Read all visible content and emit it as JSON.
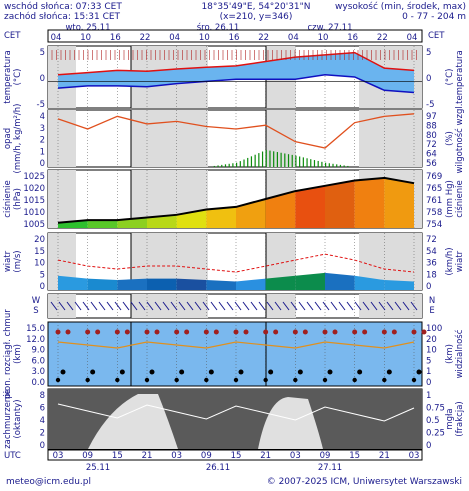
{
  "header": {
    "sunrise": "wschód słońca: 07:33 CET",
    "sunset": "zachód słońca: 15:31 CET",
    "coords": "18°35'49\"E, 54°20'31\"N",
    "grid": "(x=210, y=346)",
    "altitude_label": "wysokość (min, środek, max)",
    "altitude_values": "0 - 77 - 204 m"
  },
  "timeline": {
    "tz_left": "CET",
    "tz_right": "CET",
    "tz_bottom": "UTC",
    "cet_hours": [
      "04",
      "10",
      "16",
      "22",
      "04",
      "10",
      "16",
      "22",
      "04",
      "10",
      "16",
      "22",
      "04"
    ],
    "utc_hours": [
      "03",
      "09",
      "15",
      "21",
      "03",
      "09",
      "15",
      "21",
      "03",
      "09",
      "15",
      "21",
      "03"
    ],
    "top_days": [
      "wto. 25.11",
      "śro. 26.11",
      "czw. 27.11"
    ],
    "bottom_days": [
      "25.11",
      "26.11",
      "27.11"
    ]
  },
  "panels": {
    "temperature": {
      "ylabel_left": "temperatura",
      "unit_left": "(°C)",
      "ylabel_right": "temperatura",
      "unit_right": "(°C)",
      "ticks": [
        "5",
        "0",
        "-5"
      ]
    },
    "precip": {
      "ylabel_left": "opad",
      "unit_left": "(mm/h, kg/m²/h)",
      "ylabel_right": "wilgotność wzgl.",
      "unit_right": "(%)",
      "ticks_left": [
        "4",
        "3",
        "2",
        "1",
        "0"
      ],
      "ticks_right": [
        "97",
        "88",
        "80",
        "72",
        "64",
        "56"
      ]
    },
    "pressure": {
      "ylabel_left": "ciśnienie",
      "unit_left": "(hPa)",
      "ylabel_right": "ciśnienie",
      "unit_right": "(mm Hg)",
      "ticks_left": [
        "1025",
        "1020",
        "1015",
        "1010",
        "1005"
      ],
      "ticks_right": [
        "769",
        "765",
        "761",
        "758",
        "754"
      ]
    },
    "wind": {
      "ylabel_left": "wiatr",
      "unit_left": "(m/s)",
      "ylabel_right": "wiatr",
      "unit_right": "(km/h)",
      "ticks_left": [
        "20",
        "15",
        "10",
        "5",
        "0"
      ],
      "ticks_right": [
        "72",
        "54",
        "36",
        "18",
        "0"
      ]
    },
    "direction": {
      "labels": [
        "W",
        "S",
        "N",
        "E"
      ]
    },
    "visibility": {
      "ylabel_left": "pion. rozciągł. chmur",
      "unit_left": "(km)",
      "ylabel_right": "widzialność",
      "unit_right": "(km)",
      "ticks_left": [
        "15.0",
        "12.0",
        "9.0",
        "6.0",
        "3.0",
        "0.0"
      ],
      "ticks_right": [
        "100",
        "20",
        "10",
        "5",
        "1",
        "0"
      ]
    },
    "cloud": {
      "ylabel_left": "zachmurzenie",
      "unit_left": "(oktanty)",
      "ylabel_right": "(frakcja)",
      "unit_right": "mgła",
      "ticks_left": [
        "8",
        "6",
        "4",
        "2",
        "0"
      ],
      "ticks_right": [
        "1",
        "0.75",
        "0.5",
        "0.25",
        "0"
      ]
    }
  },
  "footer": {
    "email": "meteo@icm.edu.pl",
    "copyright": "© 2007-2025 ICM, Uniwersytet Warszawski"
  },
  "colors": {
    "text": "#1a1a8c",
    "panel_bg": "#b0b0b0",
    "shade": "#d8d8d8",
    "temp_red": "#e01010",
    "temp_blue": "#1010c0",
    "temp_fill": "#6ab4ef",
    "precip": "#0c8c0c",
    "humidity": "#e0501e",
    "vis_bg": "#7ab8ee"
  },
  "chart_data": {
    "type": "line",
    "x": [
      "25.11 03",
      "25.11 09",
      "25.11 15",
      "25.11 21",
      "26.11 03",
      "26.11 09",
      "26.11 15",
      "26.11 21",
      "27.11 03",
      "27.11 09",
      "27.11 15",
      "27.11 21",
      "28.11 03"
    ],
    "series": [
      {
        "values": [
          1.5,
          2.0,
          2.5,
          2.3,
          2.8,
          3.2,
          3.5,
          4.5,
          5.5,
          6.0,
          6.5,
          3.0,
          2.5
        ]
      },
      {
        "values": [
          -1.5,
          -1.0,
          -1.0,
          -1.2,
          -0.5,
          0.0,
          0.5,
          0.5,
          0.5,
          1.5,
          1.0,
          -2.0,
          -2.5
        ]
      },
      {
        "values": [
          3.8,
          3.0,
          4.0,
          3.4,
          3.6,
          3.2,
          3.0,
          3.3,
          2.0,
          1.5,
          3.5,
          4.0,
          4.2
        ]
      },
      {
        "values": [
          0,
          0,
          0,
          0,
          0,
          0,
          0.3,
          1.2,
          0.8,
          0.3,
          0,
          0,
          0
        ]
      },
      {
        "values": [
          1006,
          1007,
          1007,
          1008,
          1009,
          1011,
          1012,
          1015,
          1018,
          1020,
          1022,
          1023,
          1021
        ]
      },
      {
        "values": [
          5,
          4,
          3.5,
          4,
          4,
          3.5,
          3,
          4,
          5,
          6,
          5,
          3.5,
          3
        ]
      }
    ]
  }
}
